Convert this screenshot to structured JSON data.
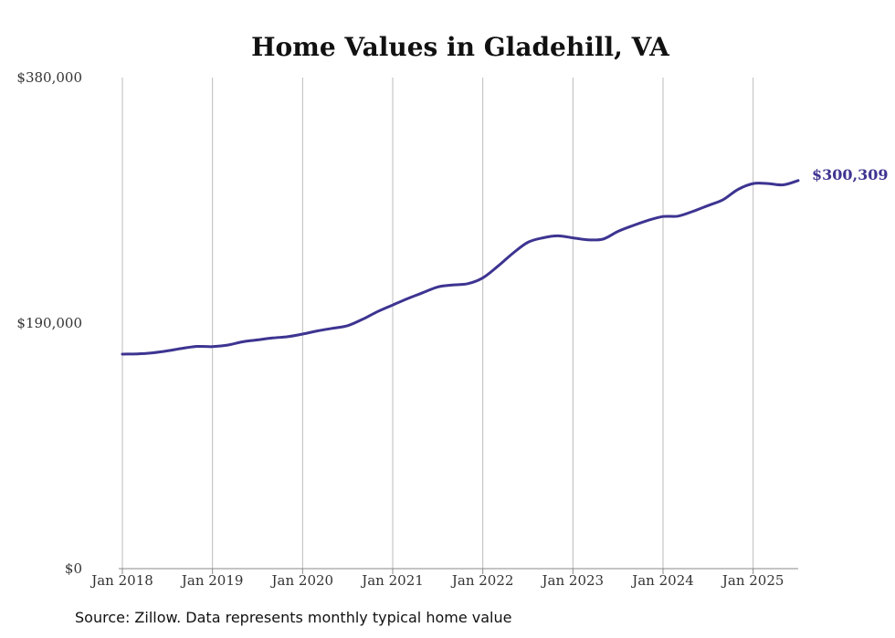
{
  "chart_data": {
    "type": "line",
    "title": "Home Values in Gladehill, VA",
    "source": "Source: Zillow. Data represents monthly typical home value",
    "ylim": [
      0,
      380000
    ],
    "yticks": [
      {
        "value": 0,
        "label": "$0"
      },
      {
        "value": 190000,
        "label": "$190,000"
      },
      {
        "value": 380000,
        "label": "$380,000"
      }
    ],
    "xticks": [
      {
        "date": "2018-01",
        "label": "Jan 2018"
      },
      {
        "date": "2019-01",
        "label": "Jan 2019"
      },
      {
        "date": "2020-01",
        "label": "Jan 2020"
      },
      {
        "date": "2021-01",
        "label": "Jan 2021"
      },
      {
        "date": "2022-01",
        "label": "Jan 2022"
      },
      {
        "date": "2023-01",
        "label": "Jan 2023"
      },
      {
        "date": "2024-01",
        "label": "Jan 2024"
      },
      {
        "date": "2025-01",
        "label": "Jan 2025"
      }
    ],
    "xrange": [
      "2018-01",
      "2025-07"
    ],
    "grid": "vertical",
    "colors": {
      "line": "#3d3491",
      "grid": "#bbbbbb",
      "axis": "#888888"
    },
    "end_label": "$300,309",
    "series": [
      {
        "x": [
          "2018-01",
          "2018-03",
          "2018-05",
          "2018-07",
          "2018-09",
          "2018-11",
          "2019-01",
          "2019-03",
          "2019-05",
          "2019-07",
          "2019-09",
          "2019-11",
          "2020-01",
          "2020-03",
          "2020-05",
          "2020-07",
          "2020-09",
          "2020-11",
          "2021-01",
          "2021-03",
          "2021-05",
          "2021-07",
          "2021-09",
          "2021-11",
          "2022-01",
          "2022-03",
          "2022-05",
          "2022-07",
          "2022-09",
          "2022-11",
          "2023-01",
          "2023-03",
          "2023-05",
          "2023-07",
          "2023-09",
          "2023-11",
          "2024-01",
          "2024-03",
          "2024-05",
          "2024-07",
          "2024-09",
          "2024-11",
          "2025-01",
          "2025-03",
          "2025-05",
          "2025-07"
        ],
        "values": [
          166000,
          166200,
          167000,
          168500,
          170500,
          172000,
          171800,
          173000,
          175500,
          177000,
          178500,
          179500,
          181500,
          184000,
          186000,
          188000,
          193000,
          199000,
          204000,
          209000,
          213500,
          218000,
          219500,
          220500,
          225000,
          234000,
          244000,
          252500,
          256000,
          257500,
          256000,
          254500,
          255000,
          261000,
          265500,
          269500,
          272500,
          272800,
          276500,
          281000,
          285500,
          293500,
          298000,
          298000,
          297000,
          300309
        ]
      }
    ]
  }
}
